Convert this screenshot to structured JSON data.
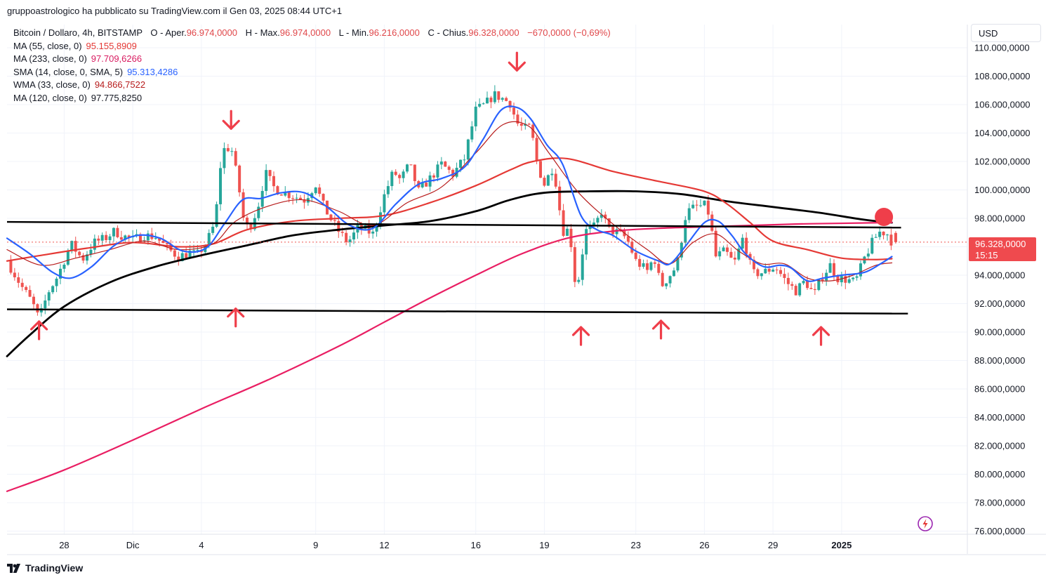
{
  "header": {
    "publish_line": "gruppoastrologico ha pubblicato su TradingView.com il Gen 03, 2025 08:44 UTC+1"
  },
  "legend": {
    "symbol_line": "Bitcoin / Dollaro, 4h, BITSTAMP",
    "ohlc": {
      "open_label": "O - Aper.",
      "open_value": "96.974,0000",
      "high_label": "H - Max.",
      "high_value": "96.974,0000",
      "low_label": "L - Min.",
      "low_value": "96.216,0000",
      "close_label": "C - Chius.",
      "close_value": "96.328,0000",
      "change": "−670,0000 (−0,69%)"
    },
    "indicators": [
      {
        "name": "MA (55, close, 0)",
        "value": "95.155,8909",
        "color": "#e53935"
      },
      {
        "name": "MA (233, close, 0)",
        "value": "97.709,6266",
        "color": "#d81b60"
      },
      {
        "name": "SMA (14, close, 0, SMA, 5)",
        "value": "95.313,4286",
        "color": "#2962ff"
      },
      {
        "name": "WMA (33, close, 0)",
        "value": "94.866,7522",
        "color": "#b71c1c"
      },
      {
        "name": "MA (120, close, 0)",
        "value": "97.775,8250",
        "color": "#131722"
      }
    ]
  },
  "currency": "USD",
  "last_price": {
    "value": "96.328,0000",
    "countdown": "15:15"
  },
  "branding": {
    "name": "TradingView"
  },
  "colors": {
    "up": "#26a69a",
    "down": "#ef5350",
    "marker": "#ef3e4a"
  },
  "chart_data": {
    "type": "candlestick",
    "title": "Bitcoin / Dollaro, 4h, BITSTAMP",
    "ylim": [
      76000,
      110500
    ],
    "y_ticks": [
      {
        "value": 76000,
        "label": "76.000,0000"
      },
      {
        "value": 78000,
        "label": "78.000,0000"
      },
      {
        "value": 80000,
        "label": "80.000,0000"
      },
      {
        "value": 82000,
        "label": "82.000,0000"
      },
      {
        "value": 84000,
        "label": "84.000,0000"
      },
      {
        "value": 86000,
        "label": "86.000,0000"
      },
      {
        "value": 88000,
        "label": "88.000,0000"
      },
      {
        "value": 90000,
        "label": "90.000,0000"
      },
      {
        "value": 92000,
        "label": "92.000,0000"
      },
      {
        "value": 94000,
        "label": "94.000,0000"
      },
      {
        "value": 96000,
        "label": "96.000,0000"
      },
      {
        "value": 98000,
        "label": "98.000,0000"
      },
      {
        "value": 100000,
        "label": "100.000,0000"
      },
      {
        "value": 102000,
        "label": "102.000,0000"
      },
      {
        "value": 104000,
        "label": "104.000,0000"
      },
      {
        "value": 106000,
        "label": "106.000,0000"
      },
      {
        "value": 108000,
        "label": "108.000,0000"
      },
      {
        "value": 110000,
        "label": "110.000,0000"
      }
    ],
    "x_range_days": [
      -2.5,
      39.5
    ],
    "x_ticks": [
      {
        "day": 0,
        "label": "28",
        "bold": false
      },
      {
        "day": 3,
        "label": "Dic",
        "bold": false
      },
      {
        "day": 6,
        "label": "4",
        "bold": false
      },
      {
        "day": 11,
        "label": "9",
        "bold": false
      },
      {
        "day": 14,
        "label": "12",
        "bold": false
      },
      {
        "day": 18,
        "label": "16",
        "bold": false
      },
      {
        "day": 21,
        "label": "19",
        "bold": false
      },
      {
        "day": 25,
        "label": "23",
        "bold": false
      },
      {
        "day": 28,
        "label": "26",
        "bold": false
      },
      {
        "day": 31,
        "label": "29",
        "bold": false
      },
      {
        "day": 34,
        "label": "2025",
        "bold": true
      }
    ],
    "price_anchors": [
      [
        -2.5,
        95000
      ],
      [
        -1.9,
        93300
      ],
      [
        -1.4,
        92100
      ],
      [
        -1.1,
        90900
      ],
      [
        -0.7,
        92800
      ],
      [
        -0.3,
        93900
      ],
      [
        0.3,
        96200
      ],
      [
        0.8,
        95100
      ],
      [
        1.3,
        96300
      ],
      [
        1.8,
        96600
      ],
      [
        2.2,
        97100
      ],
      [
        2.5,
        96800
      ],
      [
        3.0,
        96500
      ],
      [
        3.5,
        96800
      ],
      [
        4.0,
        96700
      ],
      [
        4.5,
        95900
      ],
      [
        5.0,
        95300
      ],
      [
        5.5,
        95600
      ],
      [
        5.8,
        95400
      ],
      [
        6.2,
        96200
      ],
      [
        6.6,
        97700
      ],
      [
        6.9,
        102800
      ],
      [
        7.3,
        103000
      ],
      [
        7.6,
        100600
      ],
      [
        7.9,
        97300
      ],
      [
        8.2,
        97600
      ],
      [
        8.5,
        99000
      ],
      [
        8.8,
        101200
      ],
      [
        9.2,
        100100
      ],
      [
        9.6,
        99800
      ],
      [
        10.0,
        99600
      ],
      [
        10.5,
        99300
      ],
      [
        11.0,
        100400
      ],
      [
        11.3,
        99000
      ],
      [
        11.6,
        98100
      ],
      [
        12.0,
        97100
      ],
      [
        12.4,
        96300
      ],
      [
        12.9,
        97400
      ],
      [
        13.5,
        96900
      ],
      [
        14.0,
        99600
      ],
      [
        14.4,
        101300
      ],
      [
        14.7,
        100700
      ],
      [
        15.1,
        101800
      ],
      [
        15.5,
        99900
      ],
      [
        16.0,
        100800
      ],
      [
        16.5,
        101800
      ],
      [
        17.0,
        101100
      ],
      [
        17.5,
        102200
      ],
      [
        18.0,
        105600
      ],
      [
        18.4,
        106000
      ],
      [
        18.8,
        106700
      ],
      [
        19.2,
        106400
      ],
      [
        19.5,
        106100
      ],
      [
        19.8,
        104700
      ],
      [
        20.1,
        104300
      ],
      [
        20.4,
        104400
      ],
      [
        20.7,
        101700
      ],
      [
        21.0,
        100400
      ],
      [
        21.4,
        101700
      ],
      [
        21.8,
        97100
      ],
      [
        22.1,
        97200
      ],
      [
        22.4,
        92700
      ],
      [
        22.8,
        97100
      ],
      [
        23.2,
        97400
      ],
      [
        23.5,
        98500
      ],
      [
        23.8,
        97200
      ],
      [
        24.2,
        97000
      ],
      [
        24.6,
        96600
      ],
      [
        25.0,
        95000
      ],
      [
        25.5,
        94300
      ],
      [
        25.8,
        95300
      ],
      [
        26.1,
        93200
      ],
      [
        26.4,
        93800
      ],
      [
        26.8,
        94700
      ],
      [
        27.2,
        98400
      ],
      [
        27.6,
        98800
      ],
      [
        28.0,
        98900
      ],
      [
        28.2,
        98300
      ],
      [
        28.5,
        95300
      ],
      [
        28.9,
        95700
      ],
      [
        29.3,
        94800
      ],
      [
        29.7,
        96700
      ],
      [
        30.1,
        94100
      ],
      [
        30.6,
        94200
      ],
      [
        31.1,
        94600
      ],
      [
        31.6,
        93500
      ],
      [
        32.0,
        92900
      ],
      [
        32.4,
        93600
      ],
      [
        32.8,
        92600
      ],
      [
        33.1,
        93800
      ],
      [
        33.5,
        94700
      ],
      [
        33.8,
        93800
      ],
      [
        34.2,
        93700
      ],
      [
        34.6,
        93500
      ],
      [
        35.0,
        95200
      ],
      [
        35.4,
        96500
      ],
      [
        35.7,
        97100
      ],
      [
        36.0,
        96900
      ],
      [
        36.2,
        96328
      ]
    ],
    "price_seed": 7,
    "moving_averages": [
      {
        "name": "MA (120, close, 0)",
        "color": "#000000",
        "width": 2.8,
        "points": [
          [
            -2.5,
            88300
          ],
          [
            -1.5,
            89800
          ],
          [
            0,
            91800
          ],
          [
            2,
            93500
          ],
          [
            4,
            94600
          ],
          [
            6,
            95400
          ],
          [
            8,
            96100
          ],
          [
            10,
            96800
          ],
          [
            12,
            97200
          ],
          [
            14,
            97500
          ],
          [
            16,
            97800
          ],
          [
            18,
            98500
          ],
          [
            19.5,
            99300
          ],
          [
            21,
            99800
          ],
          [
            23,
            99900
          ],
          [
            25,
            99900
          ],
          [
            27,
            99700
          ],
          [
            29,
            99200
          ],
          [
            31,
            98800
          ],
          [
            33,
            98400
          ],
          [
            35,
            97900
          ],
          [
            36.2,
            97700
          ]
        ]
      },
      {
        "name": "MA (233, close, 0)",
        "color": "#e91e63",
        "width": 2.2,
        "points": [
          [
            -2.5,
            78800
          ],
          [
            0,
            80300
          ],
          [
            3,
            82400
          ],
          [
            6,
            84600
          ],
          [
            9,
            86700
          ],
          [
            12,
            89000
          ],
          [
            14,
            90700
          ],
          [
            16,
            92400
          ],
          [
            18,
            94000
          ],
          [
            20,
            95500
          ],
          [
            22,
            96600
          ],
          [
            24,
            97100
          ],
          [
            26,
            97300
          ],
          [
            28,
            97400
          ],
          [
            30,
            97500
          ],
          [
            32,
            97600
          ],
          [
            34,
            97650
          ],
          [
            36.2,
            97710
          ]
        ]
      },
      {
        "name": "MA (55, close, 0)",
        "color": "#e53935",
        "width": 2.2,
        "points": [
          [
            -2.5,
            95000
          ],
          [
            -1,
            95400
          ],
          [
            1,
            95900
          ],
          [
            3,
            96300
          ],
          [
            5,
            96000
          ],
          [
            6.5,
            96200
          ],
          [
            8,
            97200
          ],
          [
            10,
            97800
          ],
          [
            12,
            98000
          ],
          [
            14,
            98200
          ],
          [
            16,
            99100
          ],
          [
            18,
            100300
          ],
          [
            19.5,
            101400
          ],
          [
            20.5,
            102000
          ],
          [
            22,
            102200
          ],
          [
            24,
            101300
          ],
          [
            26,
            100600
          ],
          [
            28,
            99900
          ],
          [
            29,
            99000
          ],
          [
            30,
            97700
          ],
          [
            31,
            96400
          ],
          [
            32.5,
            95800
          ],
          [
            34,
            95200
          ],
          [
            35.5,
            95100
          ],
          [
            36.2,
            95160
          ]
        ]
      },
      {
        "name": "WMA (33, close, 0)",
        "color": "#b71c1c",
        "width": 1.2,
        "points": [
          [
            -2.5,
            95800
          ],
          [
            -1,
            94700
          ],
          [
            0.5,
            95200
          ],
          [
            2,
            95800
          ],
          [
            3.5,
            96400
          ],
          [
            5,
            95800
          ],
          [
            6.5,
            96200
          ],
          [
            7.5,
            97800
          ],
          [
            9,
            98900
          ],
          [
            10.5,
            99300
          ],
          [
            12,
            98500
          ],
          [
            13.5,
            97500
          ],
          [
            15,
            99100
          ],
          [
            16.5,
            100200
          ],
          [
            18,
            102600
          ],
          [
            19.2,
            104600
          ],
          [
            20.3,
            104500
          ],
          [
            21.2,
            102600
          ],
          [
            22.5,
            99800
          ],
          [
            24,
            97600
          ],
          [
            25.5,
            95800
          ],
          [
            26.5,
            94800
          ],
          [
            27.5,
            96300
          ],
          [
            28.5,
            96900
          ],
          [
            29.5,
            95700
          ],
          [
            30.5,
            94800
          ],
          [
            31.5,
            94800
          ],
          [
            32.5,
            93800
          ],
          [
            33.5,
            93600
          ],
          [
            34.5,
            94000
          ],
          [
            35.5,
            94700
          ],
          [
            36.2,
            94870
          ]
        ]
      },
      {
        "name": "SMA (14, close, 0, SMA, 5)",
        "color": "#2962ff",
        "width": 2.2,
        "points": [
          [
            -2.5,
            96600
          ],
          [
            -1.5,
            95500
          ],
          [
            -0.5,
            94200
          ],
          [
            0.3,
            93800
          ],
          [
            1.2,
            94600
          ],
          [
            2.2,
            96100
          ],
          [
            3.2,
            96800
          ],
          [
            4.2,
            96600
          ],
          [
            5.2,
            95700
          ],
          [
            6.2,
            95900
          ],
          [
            7,
            97600
          ],
          [
            7.8,
            99300
          ],
          [
            8.6,
            99400
          ],
          [
            9.5,
            99800
          ],
          [
            10.5,
            99800
          ],
          [
            11.5,
            98800
          ],
          [
            12.5,
            97500
          ],
          [
            13.5,
            97300
          ],
          [
            14.5,
            99000
          ],
          [
            15.5,
            100400
          ],
          [
            16.5,
            100800
          ],
          [
            17.5,
            101600
          ],
          [
            18.3,
            103500
          ],
          [
            19.1,
            105600
          ],
          [
            19.8,
            105800
          ],
          [
            20.4,
            105000
          ],
          [
            21.1,
            103200
          ],
          [
            21.8,
            101800
          ],
          [
            22.6,
            98200
          ],
          [
            23.3,
            97200
          ],
          [
            24.0,
            96800
          ],
          [
            25.0,
            95700
          ],
          [
            26.0,
            95000
          ],
          [
            26.5,
            94800
          ],
          [
            27.2,
            96100
          ],
          [
            28.0,
            97700
          ],
          [
            28.6,
            97800
          ],
          [
            29.2,
            96800
          ],
          [
            29.8,
            95500
          ],
          [
            30.6,
            94600
          ],
          [
            31.3,
            94700
          ],
          [
            31.8,
            94500
          ],
          [
            32.5,
            93600
          ],
          [
            33.2,
            93800
          ],
          [
            34.0,
            94000
          ],
          [
            35.0,
            94200
          ],
          [
            35.7,
            94800
          ],
          [
            36.2,
            95310
          ]
        ]
      }
    ],
    "trendlines": [
      {
        "color": "#000000",
        "width": 2.5,
        "from": [
          -2.5,
          97750
        ],
        "to": [
          36.6,
          97350
        ]
      },
      {
        "color": "#000000",
        "width": 2.5,
        "from": [
          -2.5,
          91600
        ],
        "to": [
          36.9,
          91300
        ]
      }
    ],
    "current_price": 96328,
    "marker_circle": {
      "day": 35.85,
      "price": 98100
    },
    "arrows": [
      {
        "direction": "up",
        "day": -1.1,
        "price": 90150
      },
      {
        "direction": "down",
        "day": 7.3,
        "price": 104900
      },
      {
        "direction": "up",
        "day": 7.5,
        "price": 91050
      },
      {
        "direction": "down",
        "day": 19.8,
        "price": 109000
      },
      {
        "direction": "up",
        "day": 22.6,
        "price": 89750
      },
      {
        "direction": "up",
        "day": 26.1,
        "price": 90200
      },
      {
        "direction": "up",
        "day": 33.1,
        "price": 89750
      }
    ]
  }
}
